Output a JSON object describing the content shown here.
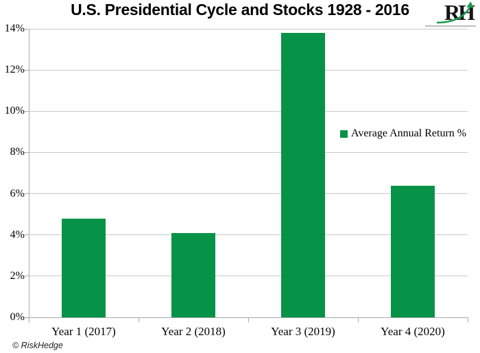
{
  "title": "U.S. Presidential Cycle and Stocks 1928 - 2016",
  "logo": {
    "text": "RH"
  },
  "legend": {
    "label": "Average Annual Return %"
  },
  "footer": {
    "copyright": "© RiskHedge"
  },
  "colors": {
    "bar": "#079347",
    "arrow": "#1c9a4d",
    "grid": "#c9c9c9",
    "axis": "#a9a9a9"
  },
  "chart_data": {
    "type": "bar",
    "title": "U.S. Presidential Cycle and Stocks 1928 - 2016",
    "categories": [
      "Year 1 (2017)",
      "Year 2 (2018)",
      "Year 3 (2019)",
      "Year 4 (2020)"
    ],
    "series": [
      {
        "name": "Average Annual Return %",
        "values": [
          4.8,
          4.1,
          13.8,
          6.4
        ]
      }
    ],
    "xlabel": "",
    "ylabel": "",
    "ylim": [
      0,
      14
    ],
    "ytick_step": 2,
    "ytick_labels": [
      "0%",
      "2%",
      "4%",
      "6%",
      "8%",
      "10%",
      "12%",
      "14%"
    ],
    "grid": true,
    "legend_position": "right-middle"
  }
}
